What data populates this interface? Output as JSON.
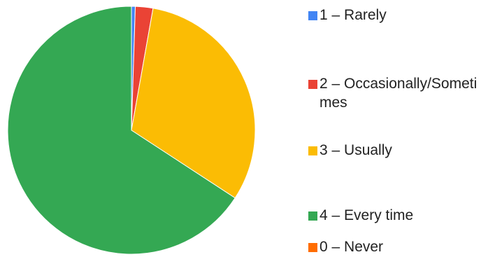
{
  "chart_data": {
    "type": "pie",
    "start_angle_deg": 0,
    "direction": "clockwise",
    "slices": [
      {
        "label": "1 – Rarely",
        "value": 0.5,
        "color": "#4285f4"
      },
      {
        "label": "2 – Occasionally/Sometimes",
        "value": 2.3,
        "color": "#ea4335"
      },
      {
        "label": "3 – Usually",
        "value": 31.4,
        "color": "#fbbc04"
      },
      {
        "label": "4 – Every time",
        "value": 65.8,
        "color": "#34a853"
      },
      {
        "label": "0 – Never",
        "value": 0.0,
        "color": "#ff6d01"
      }
    ],
    "legend_placement": "right"
  }
}
